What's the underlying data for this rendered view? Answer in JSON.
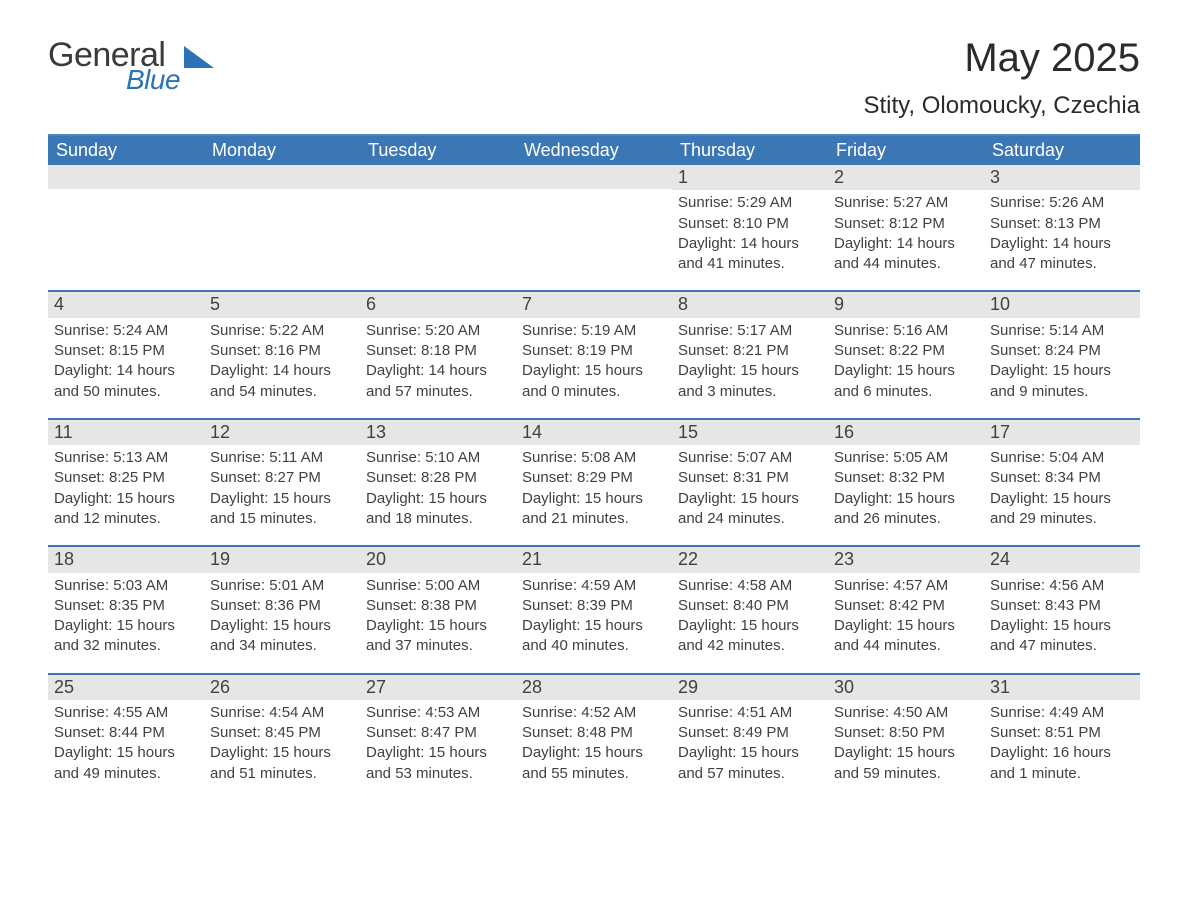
{
  "logo": {
    "general": "General",
    "blue": "Blue",
    "accent_color": "#2c72b6"
  },
  "title": "May 2025",
  "location": "Stity, Olomoucky, Czechia",
  "colors": {
    "header_bg": "#3b76b5",
    "header_text": "#ffffff",
    "row_divider": "#3b76b5",
    "daynum_bg": "#e6e6e6",
    "body_text": "#414141",
    "page_bg": "#ffffff"
  },
  "weekdays": [
    "Sunday",
    "Monday",
    "Tuesday",
    "Wednesday",
    "Thursday",
    "Friday",
    "Saturday"
  ],
  "weeks": [
    [
      null,
      null,
      null,
      null,
      {
        "day": "1",
        "sunrise": "5:29 AM",
        "sunset": "8:10 PM",
        "daylight": "14 hours and 41 minutes."
      },
      {
        "day": "2",
        "sunrise": "5:27 AM",
        "sunset": "8:12 PM",
        "daylight": "14 hours and 44 minutes."
      },
      {
        "day": "3",
        "sunrise": "5:26 AM",
        "sunset": "8:13 PM",
        "daylight": "14 hours and 47 minutes."
      }
    ],
    [
      {
        "day": "4",
        "sunrise": "5:24 AM",
        "sunset": "8:15 PM",
        "daylight": "14 hours and 50 minutes."
      },
      {
        "day": "5",
        "sunrise": "5:22 AM",
        "sunset": "8:16 PM",
        "daylight": "14 hours and 54 minutes."
      },
      {
        "day": "6",
        "sunrise": "5:20 AM",
        "sunset": "8:18 PM",
        "daylight": "14 hours and 57 minutes."
      },
      {
        "day": "7",
        "sunrise": "5:19 AM",
        "sunset": "8:19 PM",
        "daylight": "15 hours and 0 minutes."
      },
      {
        "day": "8",
        "sunrise": "5:17 AM",
        "sunset": "8:21 PM",
        "daylight": "15 hours and 3 minutes."
      },
      {
        "day": "9",
        "sunrise": "5:16 AM",
        "sunset": "8:22 PM",
        "daylight": "15 hours and 6 minutes."
      },
      {
        "day": "10",
        "sunrise": "5:14 AM",
        "sunset": "8:24 PM",
        "daylight": "15 hours and 9 minutes."
      }
    ],
    [
      {
        "day": "11",
        "sunrise": "5:13 AM",
        "sunset": "8:25 PM",
        "daylight": "15 hours and 12 minutes."
      },
      {
        "day": "12",
        "sunrise": "5:11 AM",
        "sunset": "8:27 PM",
        "daylight": "15 hours and 15 minutes."
      },
      {
        "day": "13",
        "sunrise": "5:10 AM",
        "sunset": "8:28 PM",
        "daylight": "15 hours and 18 minutes."
      },
      {
        "day": "14",
        "sunrise": "5:08 AM",
        "sunset": "8:29 PM",
        "daylight": "15 hours and 21 minutes."
      },
      {
        "day": "15",
        "sunrise": "5:07 AM",
        "sunset": "8:31 PM",
        "daylight": "15 hours and 24 minutes."
      },
      {
        "day": "16",
        "sunrise": "5:05 AM",
        "sunset": "8:32 PM",
        "daylight": "15 hours and 26 minutes."
      },
      {
        "day": "17",
        "sunrise": "5:04 AM",
        "sunset": "8:34 PM",
        "daylight": "15 hours and 29 minutes."
      }
    ],
    [
      {
        "day": "18",
        "sunrise": "5:03 AM",
        "sunset": "8:35 PM",
        "daylight": "15 hours and 32 minutes."
      },
      {
        "day": "19",
        "sunrise": "5:01 AM",
        "sunset": "8:36 PM",
        "daylight": "15 hours and 34 minutes."
      },
      {
        "day": "20",
        "sunrise": "5:00 AM",
        "sunset": "8:38 PM",
        "daylight": "15 hours and 37 minutes."
      },
      {
        "day": "21",
        "sunrise": "4:59 AM",
        "sunset": "8:39 PM",
        "daylight": "15 hours and 40 minutes."
      },
      {
        "day": "22",
        "sunrise": "4:58 AM",
        "sunset": "8:40 PM",
        "daylight": "15 hours and 42 minutes."
      },
      {
        "day": "23",
        "sunrise": "4:57 AM",
        "sunset": "8:42 PM",
        "daylight": "15 hours and 44 minutes."
      },
      {
        "day": "24",
        "sunrise": "4:56 AM",
        "sunset": "8:43 PM",
        "daylight": "15 hours and 47 minutes."
      }
    ],
    [
      {
        "day": "25",
        "sunrise": "4:55 AM",
        "sunset": "8:44 PM",
        "daylight": "15 hours and 49 minutes."
      },
      {
        "day": "26",
        "sunrise": "4:54 AM",
        "sunset": "8:45 PM",
        "daylight": "15 hours and 51 minutes."
      },
      {
        "day": "27",
        "sunrise": "4:53 AM",
        "sunset": "8:47 PM",
        "daylight": "15 hours and 53 minutes."
      },
      {
        "day": "28",
        "sunrise": "4:52 AM",
        "sunset": "8:48 PM",
        "daylight": "15 hours and 55 minutes."
      },
      {
        "day": "29",
        "sunrise": "4:51 AM",
        "sunset": "8:49 PM",
        "daylight": "15 hours and 57 minutes."
      },
      {
        "day": "30",
        "sunrise": "4:50 AM",
        "sunset": "8:50 PM",
        "daylight": "15 hours and 59 minutes."
      },
      {
        "day": "31",
        "sunrise": "4:49 AM",
        "sunset": "8:51 PM",
        "daylight": "16 hours and 1 minute."
      }
    ]
  ],
  "labels": {
    "sunrise_prefix": "Sunrise: ",
    "sunset_prefix": "Sunset: ",
    "daylight_prefix": "Daylight: "
  }
}
